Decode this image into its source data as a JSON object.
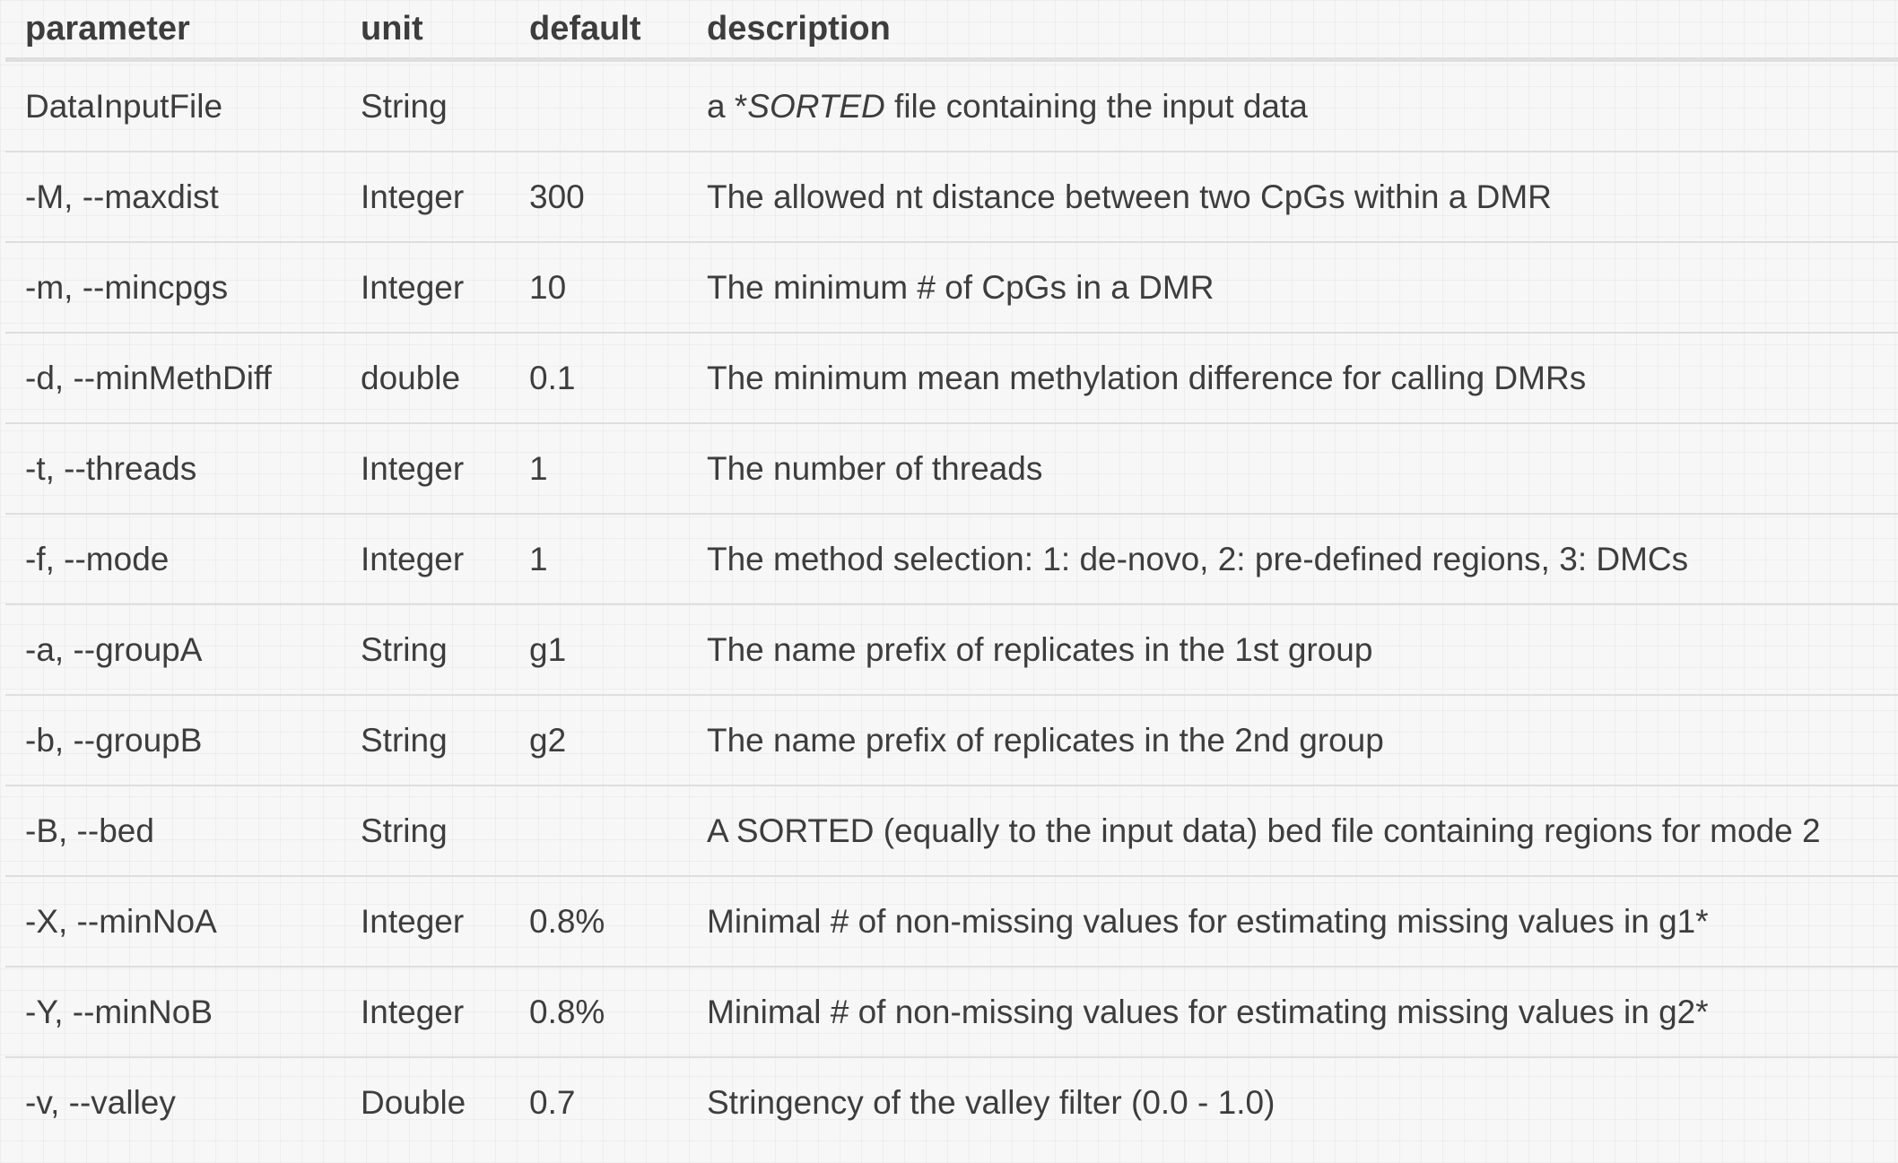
{
  "table": {
    "headers": [
      "parameter",
      "unit",
      "default",
      "description"
    ],
    "rows": [
      {
        "parameter": "DataInputFile",
        "unit": "String",
        "default": "",
        "desc_prefix": "a *",
        "desc_italic": "SORTED",
        "desc_suffix": " file containing the input data"
      },
      {
        "parameter": "-M, --maxdist",
        "unit": "Integer",
        "default": "300",
        "description": "The allowed nt distance between two CpGs within a DMR"
      },
      {
        "parameter": "-m, --mincpgs",
        "unit": "Integer",
        "default": "10",
        "description": "The minimum # of CpGs in a DMR"
      },
      {
        "parameter": "-d, --minMethDiff",
        "unit": "double",
        "default": "0.1",
        "description": "The minimum mean methylation difference for calling DMRs"
      },
      {
        "parameter": "-t, --threads",
        "unit": "Integer",
        "default": "1",
        "description": "The number of threads"
      },
      {
        "parameter": "-f, --mode",
        "unit": "Integer",
        "default": "1",
        "description": "The method selection: 1: de-novo, 2: pre-defined regions, 3: DMCs"
      },
      {
        "parameter": "-a, --groupA",
        "unit": "String",
        "default": "g1",
        "description": "The name prefix of replicates in the 1st group"
      },
      {
        "parameter": "-b, --groupB",
        "unit": "String",
        "default": "g2",
        "description": "The name prefix of replicates in the 2nd group"
      },
      {
        "parameter": "-B, --bed",
        "unit": "String",
        "default": "",
        "description": "A SORTED (equally to the input data) bed file containing regions for mode 2"
      },
      {
        "parameter": "-X, --minNoA",
        "unit": "Integer",
        "default": "0.8%",
        "description": "Minimal # of non-missing values for estimating missing values in g1*"
      },
      {
        "parameter": "-Y, --minNoB",
        "unit": "Integer",
        "default": "0.8%",
        "description": "Minimal # of non-missing values for estimating missing values in g2*"
      },
      {
        "parameter": "-v, --valley",
        "unit": "Double",
        "default": "0.7",
        "description": "Stringency of the valley filter (0.0 - 1.0)"
      }
    ]
  }
}
